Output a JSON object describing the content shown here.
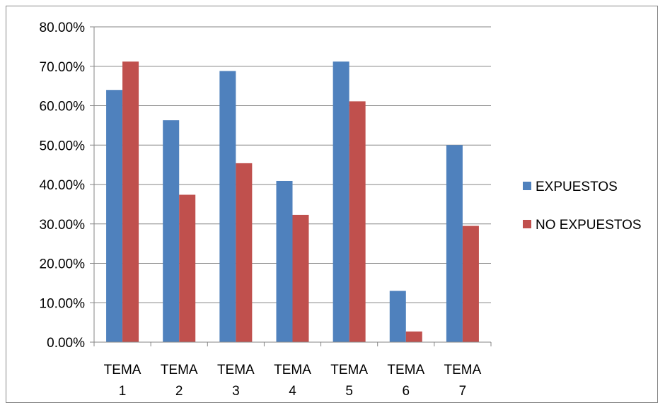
{
  "chart_data": {
    "type": "bar",
    "categories": [
      [
        "TEMA",
        "1"
      ],
      [
        "TEMA",
        "2"
      ],
      [
        "TEMA",
        "3"
      ],
      [
        "TEMA",
        "4"
      ],
      [
        "TEMA",
        "5"
      ],
      [
        "TEMA",
        "6"
      ],
      [
        "TEMA",
        "7"
      ]
    ],
    "series": [
      {
        "name": "EXPUESTOS",
        "color": "#4F81BD",
        "values": [
          64.0,
          56.3,
          68.8,
          40.9,
          71.2,
          13.0,
          50.0
        ]
      },
      {
        "name": "NO EXPUESTOS",
        "color": "#C0504D",
        "values": [
          71.2,
          37.4,
          45.4,
          32.3,
          61.1,
          2.7,
          29.5
        ]
      }
    ],
    "yticks": [
      "0.00%",
      "10.00%",
      "20.00%",
      "30.00%",
      "40.00%",
      "50.00%",
      "60.00%",
      "70.00%",
      "80.00%"
    ],
    "ylim": [
      0,
      80
    ],
    "title": "",
    "xlabel": "",
    "ylabel": "",
    "grid": true,
    "legend_position": "right"
  }
}
